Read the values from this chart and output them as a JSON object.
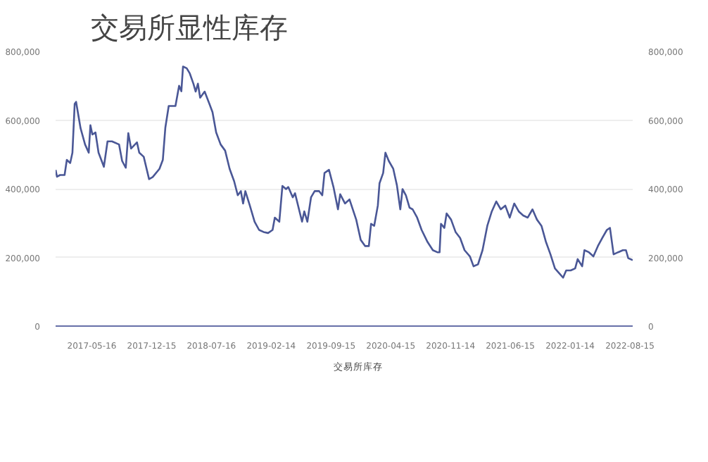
{
  "chart_data": {
    "type": "line",
    "title": "交易所显性库存",
    "x": [
      "2017-01-07",
      "2017-01-12",
      "2017-01-23",
      "2017-02-08",
      "2017-02-16",
      "2017-02-28",
      "2017-03-08",
      "2017-03-16",
      "2017-03-21",
      "2017-04-06",
      "2017-04-22",
      "2017-05-05",
      "2017-05-11",
      "2017-05-18",
      "2017-05-29",
      "2017-06-09",
      "2017-06-28",
      "2017-07-11",
      "2017-07-27",
      "2017-08-21",
      "2017-09-01",
      "2017-09-14",
      "2017-09-23",
      "2017-10-03",
      "2017-10-24",
      "2017-11-01",
      "2017-11-17",
      "2017-12-06",
      "2017-12-19",
      "2018-01-12",
      "2018-01-24",
      "2018-02-02",
      "2018-02-14",
      "2018-03-10",
      "2018-03-23",
      "2018-03-31",
      "2018-04-06",
      "2018-04-19",
      "2018-04-30",
      "2018-05-13",
      "2018-05-21",
      "2018-05-29",
      "2018-06-06",
      "2018-06-22",
      "2018-07-09",
      "2018-07-20",
      "2018-08-02",
      "2018-08-18",
      "2018-09-03",
      "2018-09-19",
      "2018-10-05",
      "2018-10-18",
      "2018-10-29",
      "2018-11-06",
      "2018-11-14",
      "2018-11-30",
      "2018-12-17",
      "2019-01-02",
      "2019-01-18",
      "2019-02-03",
      "2019-02-19",
      "2019-02-27",
      "2019-03-15",
      "2019-03-26",
      "2019-04-08",
      "2019-04-16",
      "2019-05-02",
      "2019-05-10",
      "2019-06-04",
      "2019-06-12",
      "2019-06-23",
      "2019-07-06",
      "2019-07-19",
      "2019-08-04",
      "2019-08-15",
      "2019-08-23",
      "2019-09-08",
      "2019-09-24",
      "2019-10-10",
      "2019-10-18",
      "2019-11-04",
      "2019-11-20",
      "2019-12-14",
      "2019-12-30",
      "2020-01-15",
      "2020-01-28",
      "2020-02-05",
      "2020-02-16",
      "2020-02-29",
      "2020-03-06",
      "2020-03-19",
      "2020-03-27",
      "2020-04-08",
      "2020-04-24",
      "2020-05-07",
      "2020-05-19",
      "2020-05-27",
      "2020-06-08",
      "2020-06-21",
      "2020-07-02",
      "2020-07-18",
      "2020-08-03",
      "2020-08-24",
      "2020-09-12",
      "2020-09-28",
      "2020-10-06",
      "2020-10-11",
      "2020-10-23",
      "2020-10-31",
      "2020-11-16",
      "2020-12-02",
      "2020-12-18",
      "2021-01-03",
      "2021-01-22",
      "2021-02-04",
      "2021-02-20",
      "2021-03-08",
      "2021-03-25",
      "2021-04-10",
      "2021-04-26",
      "2021-05-12",
      "2021-05-28",
      "2021-06-13",
      "2021-06-29",
      "2021-07-15",
      "2021-07-31",
      "2021-08-16",
      "2021-09-02",
      "2021-09-18",
      "2021-10-04",
      "2021-10-20",
      "2021-11-05",
      "2021-11-21",
      "2021-12-07",
      "2021-12-20",
      "2021-12-31",
      "2022-01-16",
      "2022-02-01",
      "2022-02-10",
      "2022-02-26",
      "2022-03-06",
      "2022-03-22",
      "2022-04-07",
      "2022-04-23",
      "2022-05-09",
      "2022-05-25",
      "2022-06-05",
      "2022-06-18",
      "2022-07-04",
      "2022-07-21",
      "2022-08-01",
      "2022-08-09",
      "2022-08-25"
    ],
    "series": [
      {
        "name": "交易所库存",
        "color": "#4a5796",
        "values": [
          455000,
          435000,
          440000,
          440000,
          484000,
          475000,
          505000,
          647000,
          653000,
          576000,
          529000,
          505000,
          585000,
          558000,
          564000,
          505000,
          464000,
          538000,
          538000,
          529000,
          481000,
          461000,
          562000,
          517000,
          535000,
          505000,
          493000,
          428000,
          434000,
          458000,
          484000,
          578000,
          641000,
          641000,
          700000,
          684000,
          756000,
          751000,
          736000,
          706000,
          683000,
          706000,
          665000,
          683000,
          647000,
          623000,
          564000,
          529000,
          511000,
          458000,
          422000,
          381000,
          393000,
          357000,
          393000,
          351000,
          304000,
          280000,
          274000,
          271000,
          280000,
          316000,
          304000,
          408000,
          399000,
          405000,
          375000,
          387000,
          304000,
          334000,
          304000,
          375000,
          393000,
          393000,
          381000,
          446000,
          455000,
          405000,
          340000,
          384000,
          357000,
          369000,
          310000,
          251000,
          233000,
          233000,
          298000,
          292000,
          351000,
          416000,
          446000,
          505000,
          481000,
          458000,
          410000,
          340000,
          399000,
          381000,
          345000,
          340000,
          316000,
          280000,
          245000,
          221000,
          215000,
          215000,
          298000,
          286000,
          328000,
          310000,
          274000,
          257000,
          221000,
          203000,
          174000,
          180000,
          221000,
          292000,
          334000,
          363000,
          340000,
          351000,
          316000,
          357000,
          334000,
          322000,
          316000,
          340000,
          310000,
          292000,
          245000,
          209000,
          168000,
          153000,
          141000,
          162000,
          162000,
          168000,
          195000,
          174000,
          221000,
          215000,
          203000,
          233000,
          257000,
          280000,
          286000,
          209000,
          215000,
          221000,
          221000,
          198000,
          192000
        ]
      }
    ],
    "xlim": [
      "2017-01-07",
      "2022-08-25"
    ],
    "xticks": [
      {
        "value": "2017-05-16",
        "label": "2017-05-16"
      },
      {
        "value": "2017-12-15",
        "label": "2017-12-15"
      },
      {
        "value": "2018-07-16",
        "label": "2018-07-16"
      },
      {
        "value": "2019-02-14",
        "label": "2019-02-14"
      },
      {
        "value": "2019-09-15",
        "label": "2019-09-15"
      },
      {
        "value": "2020-04-15",
        "label": "2020-04-15"
      },
      {
        "value": "2020-11-14",
        "label": "2020-11-14"
      },
      {
        "value": "2021-06-15",
        "label": "2021-06-15"
      },
      {
        "value": "2022-01-14",
        "label": "2022-01-14"
      },
      {
        "value": "2022-08-15",
        "label": "2022-08-15"
      }
    ],
    "ylim": [
      0,
      800000
    ],
    "yticks": [
      0,
      {
        "value": 200000,
        "label": "200,000"
      },
      {
        "value": 400000,
        "label": "400,000"
      },
      {
        "value": 600000,
        "label": "600,000"
      },
      {
        "value": 800000,
        "label": "800,000"
      }
    ],
    "y2lim": [
      0,
      800000
    ],
    "y2ticks": [
      0,
      {
        "value": 200000,
        "label": "200,000"
      },
      {
        "value": 400000,
        "label": "400,000"
      },
      {
        "value": 600000,
        "label": "600,000"
      },
      {
        "value": 800000,
        "label": "800,000"
      }
    ],
    "grid": "y",
    "legend": "bottom"
  }
}
